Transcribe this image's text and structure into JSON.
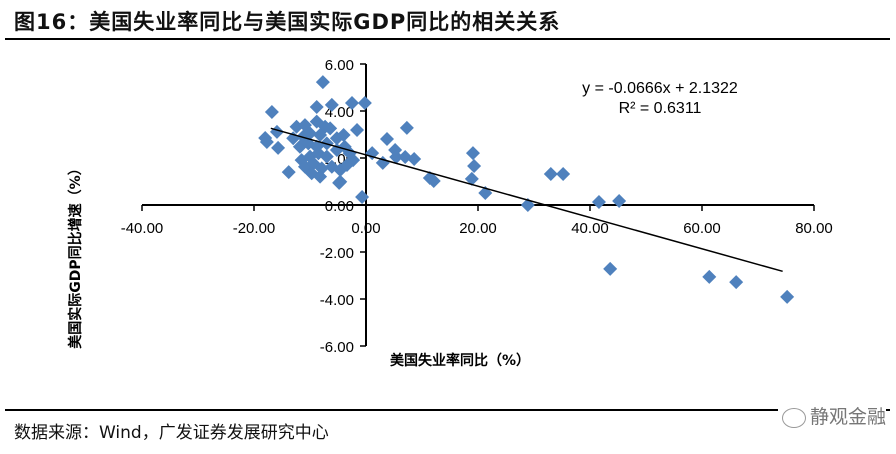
{
  "title": "图16：美国失业率同比与美国实际GDP同比的相关关系",
  "source": "数据来源：Wind，广发证券发展研究中心",
  "watermark": "静观金融",
  "chart_data": {
    "type": "scatter",
    "xlabel": "美国失业率同比（%）",
    "ylabel": "美国实际GDP同比增速（%）",
    "xlim": [
      -40,
      80
    ],
    "ylim": [
      -6,
      6
    ],
    "xticks": [
      "-40.00",
      "-20.00",
      "0.00",
      "20.00",
      "40.00",
      "60.00",
      "80.00"
    ],
    "yticks": [
      "6.00",
      "4.00",
      "2.00",
      "0.00",
      "-2.00",
      "-4.00",
      "-6.00"
    ],
    "marker_color": "#4F81BD",
    "marker": "diamond",
    "trendline": {
      "slope": -0.0666,
      "intercept": 2.1322,
      "x_range": [
        -17,
        74.4
      ],
      "equation": "y = -0.0666x + 2.1322",
      "r2": "R² = 0.6311"
    },
    "points": [
      [
        -7.7,
        5.23
      ],
      [
        -16.8,
        3.96
      ],
      [
        -2.5,
        4.34
      ],
      [
        -0.2,
        4.34
      ],
      [
        -8.8,
        4.17
      ],
      [
        -6.1,
        4.26
      ],
      [
        -18.0,
        2.85
      ],
      [
        -17.7,
        2.68
      ],
      [
        -15.9,
        3.11
      ],
      [
        -15.7,
        2.43
      ],
      [
        -13.8,
        1.4
      ],
      [
        -1.6,
        3.19
      ],
      [
        -0.7,
        0.34
      ],
      [
        -4.8,
        0.94
      ],
      [
        1.1,
        2.21
      ],
      [
        -12.4,
        3.33
      ],
      [
        -10.9,
        3.4
      ],
      [
        -8.8,
        3.55
      ],
      [
        -7.3,
        3.33
      ],
      [
        -6.4,
        3.26
      ],
      [
        -13.0,
        2.84
      ],
      [
        -11.2,
        2.91
      ],
      [
        -10.0,
        3.05
      ],
      [
        -8.2,
        2.98
      ],
      [
        -11.8,
        2.48
      ],
      [
        -10.3,
        2.62
      ],
      [
        -8.8,
        2.48
      ],
      [
        -7.0,
        2.62
      ],
      [
        -5.2,
        2.84
      ],
      [
        -4.0,
        2.98
      ],
      [
        -11.5,
        1.91
      ],
      [
        -10.0,
        2.06
      ],
      [
        -8.5,
        2.2
      ],
      [
        -7.0,
        2.06
      ],
      [
        -5.2,
        2.34
      ],
      [
        -3.8,
        2.48
      ],
      [
        -2.9,
        2.2
      ],
      [
        -10.9,
        1.63
      ],
      [
        -9.4,
        1.77
      ],
      [
        -7.9,
        1.56
      ],
      [
        -6.1,
        1.63
      ],
      [
        -4.6,
        1.49
      ],
      [
        -3.4,
        1.7
      ],
      [
        -9.7,
        1.35
      ],
      [
        -8.2,
        1.21
      ],
      [
        -4.6,
        0.99
      ],
      [
        -2.3,
        1.91
      ],
      [
        3.75,
        2.81
      ],
      [
        7.3,
        3.28
      ],
      [
        5.2,
        2.34
      ],
      [
        5.4,
        2.04
      ],
      [
        7.0,
        2.04
      ],
      [
        8.6,
        1.96
      ],
      [
        3.0,
        1.79
      ],
      [
        11.4,
        1.15
      ],
      [
        12.1,
        1.02
      ],
      [
        19.1,
        2.21
      ],
      [
        19.3,
        1.66
      ],
      [
        18.9,
        1.11
      ],
      [
        21.3,
        0.51
      ],
      [
        28.9,
        0.0
      ],
      [
        33.0,
        1.32
      ],
      [
        35.2,
        1.32
      ],
      [
        41.6,
        0.13
      ],
      [
        45.2,
        0.17
      ],
      [
        43.6,
        -2.72
      ],
      [
        61.3,
        -3.06
      ],
      [
        66.1,
        -3.28
      ],
      [
        75.2,
        -3.91
      ]
    ]
  }
}
